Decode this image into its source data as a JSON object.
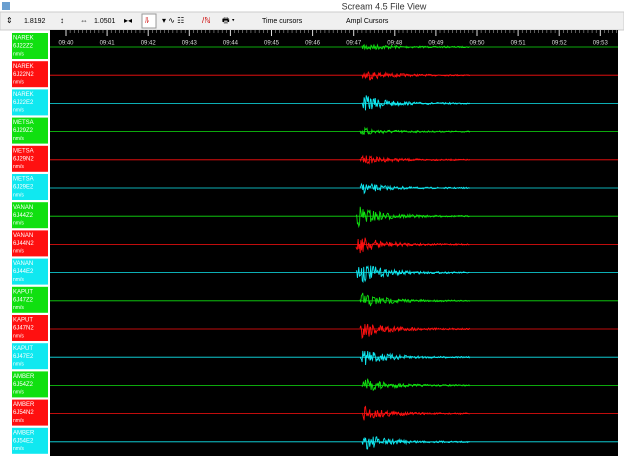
{
  "window": {
    "title": "Scream 4.5 File View"
  },
  "toolbar": {
    "value_1": "1.8192",
    "value_2": "1.0501",
    "time_cursors": "Time cursors",
    "ampl_cursors": "Ampl Cursors"
  },
  "time_axis": {
    "labels": [
      "09:40",
      "09:41",
      "09:42",
      "09:43",
      "09:44",
      "09:45",
      "09:46",
      "09:47",
      "09:48",
      "09:49",
      "09:50",
      "09:51",
      "09:52",
      "09:53"
    ]
  },
  "channels": [
    {
      "station": "NAREK",
      "code": "6J22Z2",
      "units": "nm/s",
      "color": "#10e010"
    },
    {
      "station": "NAREK",
      "code": "6J22N2",
      "units": "nm/s",
      "color": "#ff1010"
    },
    {
      "station": "NAREK",
      "code": "6J22E2",
      "units": "nm/s",
      "color": "#10e8f0"
    },
    {
      "station": "METSA",
      "code": "6J29Z2",
      "units": "nm/s",
      "color": "#10e010"
    },
    {
      "station": "METSA",
      "code": "6J29N2",
      "units": "nm/s",
      "color": "#ff1010"
    },
    {
      "station": "METSA",
      "code": "6J29E2",
      "units": "nm/s",
      "color": "#10e8f0"
    },
    {
      "station": "VANAN",
      "code": "6J44Z2",
      "units": "nm/s",
      "color": "#10e010"
    },
    {
      "station": "VANAN",
      "code": "6J44N2",
      "units": "nm/s",
      "color": "#ff1010"
    },
    {
      "station": "VANAN",
      "code": "6J44E2",
      "units": "nm/s",
      "color": "#10e8f0"
    },
    {
      "station": "KAPUT",
      "code": "6J47Z2",
      "units": "nm/s",
      "color": "#10e010"
    },
    {
      "station": "KAPUT",
      "code": "6J47N2",
      "units": "nm/s",
      "color": "#ff1010"
    },
    {
      "station": "KAPUT",
      "code": "6J47E2",
      "units": "nm/s",
      "color": "#10e8f0"
    },
    {
      "station": "AMBER",
      "code": "6J54Z2",
      "units": "nm/s",
      "color": "#10e010"
    },
    {
      "station": "AMBER",
      "code": "6J54N2",
      "units": "nm/s",
      "color": "#ff1010"
    },
    {
      "station": "AMBER",
      "code": "6J54E2",
      "units": "nm/s",
      "color": "#10e8f0"
    }
  ]
}
